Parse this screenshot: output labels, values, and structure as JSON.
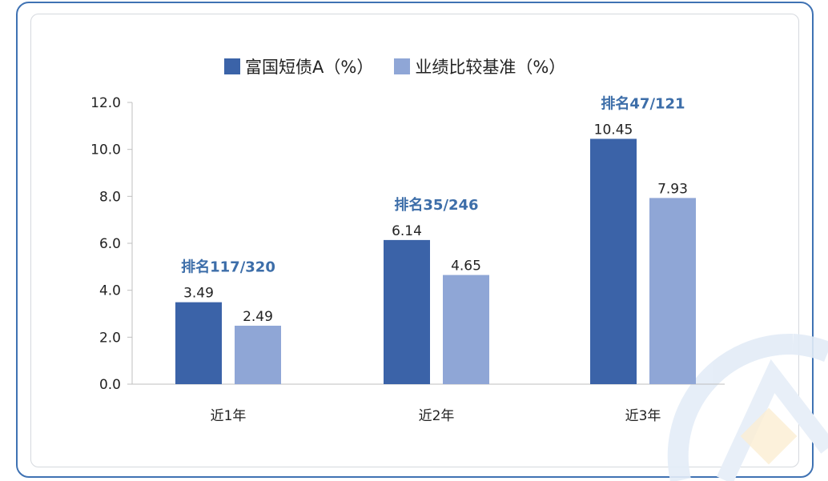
{
  "chart_data": {
    "type": "bar",
    "categories": [
      "近1年",
      "近2年",
      "近3年"
    ],
    "series": [
      {
        "name": "富国短债A（%）",
        "values": [
          3.49,
          6.14,
          10.45
        ],
        "color": "#3b63a8"
      },
      {
        "name": "业绩比较基准（%）",
        "values": [
          2.49,
          4.65,
          7.93
        ],
        "color": "#8fa6d6"
      }
    ],
    "data_labels": [
      [
        "3.49",
        "6.14",
        "10.45"
      ],
      [
        "2.49",
        "4.65",
        "7.93"
      ]
    ],
    "annotations": [
      "排名117/320",
      "排名35/246",
      "排名47/121"
    ],
    "ylim": [
      0,
      12
    ],
    "yticks": [
      "0.0",
      "2.0",
      "4.0",
      "6.0",
      "8.0",
      "10.0",
      "12.0"
    ],
    "legend_position": "top",
    "grid": false
  },
  "colors": {
    "frame": "#3f72b3",
    "annotation": "#3d6ea9",
    "watermark": "#dfe9f5"
  }
}
